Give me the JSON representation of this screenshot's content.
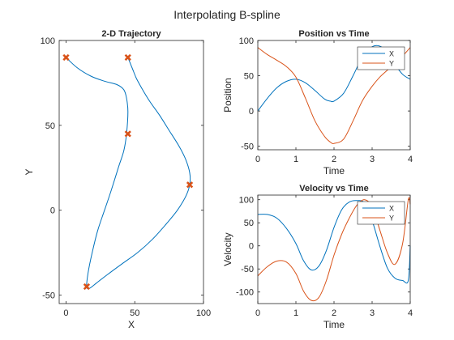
{
  "figure": {
    "suptitle": "Interpolating B-spline",
    "colors": {
      "series1": "#0072BD",
      "series2": "#D95319",
      "marker": "#D95319",
      "axis": "#262626",
      "background": "#ffffff"
    }
  },
  "chart_data": [
    {
      "type": "line",
      "title": "2-D Trajectory",
      "xlabel": "X",
      "ylabel": "Y",
      "xlim": [
        -5,
        100
      ],
      "ylim": [
        -55,
        100
      ],
      "xticks": [
        0,
        50,
        100
      ],
      "yticks": [
        -50,
        0,
        50,
        100
      ],
      "grid": false,
      "legend": null,
      "waypoints": {
        "x": [
          0,
          45,
          15,
          90,
          45
        ],
        "y": [
          90,
          45,
          -45,
          15,
          90
        ],
        "marker": "x"
      },
      "curve": {
        "x": [
          0,
          8,
          18,
          28,
          37,
          42,
          44,
          45,
          44,
          42,
          38,
          33,
          28,
          23,
          19,
          16,
          15,
          17,
          22,
          30,
          40,
          52,
          63,
          73,
          81,
          87,
          90,
          90,
          87,
          82,
          75,
          68,
          61,
          55,
          51,
          48,
          46,
          45
        ],
        "y": [
          90,
          84,
          79,
          76,
          74,
          71,
          66,
          58,
          45,
          35,
          25,
          12,
          0,
          -12,
          -25,
          -37,
          -45,
          -46,
          -43,
          -38,
          -32,
          -25,
          -17,
          -8,
          0,
          8,
          15,
          22,
          30,
          38,
          47,
          56,
          64,
          72,
          78,
          84,
          88,
          90
        ]
      }
    },
    {
      "type": "line",
      "title": "Position vs Time",
      "xlabel": "Time",
      "ylabel": "Position",
      "xlim": [
        0,
        4
      ],
      "ylim": [
        -55,
        100
      ],
      "xticks": [
        0,
        1,
        2,
        3,
        4
      ],
      "yticks": [
        -50,
        0,
        50,
        100
      ],
      "grid": false,
      "legend": "top-right",
      "x": [
        0,
        0.25,
        0.5,
        0.75,
        1.0,
        1.25,
        1.5,
        1.75,
        1.9,
        2.0,
        2.25,
        2.5,
        2.75,
        3.0,
        3.2,
        3.4,
        3.6,
        3.8,
        4.0
      ],
      "series": [
        {
          "name": "X",
          "values": [
            0,
            18,
            33,
            42,
            45,
            40,
            29,
            17,
            14,
            14,
            25,
            50,
            77,
            91,
            92,
            83,
            66,
            52,
            45
          ]
        },
        {
          "name": "Y",
          "values": [
            90,
            80,
            72,
            63,
            48,
            18,
            -14,
            -36,
            -44,
            -46,
            -40,
            -14,
            15,
            35,
            48,
            58,
            68,
            78,
            90
          ]
        }
      ]
    },
    {
      "type": "line",
      "title": "Velocity vs Time",
      "xlabel": "Time",
      "ylabel": "Velocity",
      "xlim": [
        0,
        4
      ],
      "ylim": [
        -125,
        110
      ],
      "xticks": [
        0,
        1,
        2,
        3,
        4
      ],
      "yticks": [
        -100,
        -50,
        0,
        50,
        100
      ],
      "grid": false,
      "legend": "top-right",
      "x": [
        0,
        0.25,
        0.5,
        0.75,
        1.0,
        1.2,
        1.4,
        1.6,
        1.8,
        2.0,
        2.2,
        2.4,
        2.6,
        2.8,
        3.0,
        3.2,
        3.4,
        3.6,
        3.8,
        3.95,
        4.0
      ],
      "series": [
        {
          "name": "X",
          "values": [
            68,
            68,
            60,
            38,
            5,
            -32,
            -52,
            -44,
            -10,
            40,
            78,
            95,
            98,
            93,
            55,
            0,
            -48,
            -70,
            -75,
            -75,
            0
          ]
        },
        {
          "name": "Y",
          "values": [
            -65,
            -45,
            -33,
            -35,
            -60,
            -98,
            -118,
            -112,
            -75,
            -20,
            25,
            60,
            88,
            100,
            85,
            35,
            -15,
            -40,
            5,
            100,
            90
          ]
        }
      ]
    }
  ]
}
